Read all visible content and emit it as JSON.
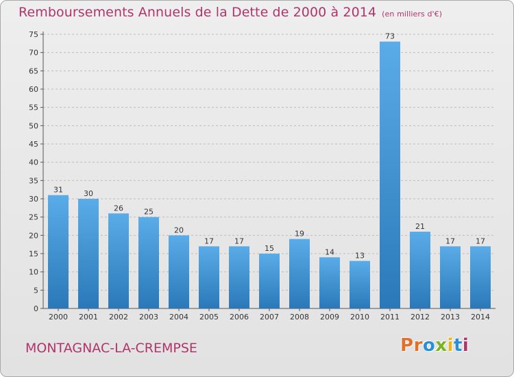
{
  "header": {
    "title": "Remboursements Annuels de la Dette de 2000 à 2014",
    "unit": "(en milliers d'€)"
  },
  "footer": {
    "commune": "MONTAGNAC-LA-CREMPSE",
    "logo": {
      "text": "Proxiti",
      "letters": [
        {
          "char": "P",
          "color": "#e0702a"
        },
        {
          "char": "r",
          "color": "#e0702a"
        },
        {
          "char": "o",
          "color": "#2a8fd6"
        },
        {
          "char": "x",
          "color": "#7ab51d"
        },
        {
          "char": "i",
          "color": "#e8b51a"
        },
        {
          "char": "t",
          "color": "#2a8fd6"
        },
        {
          "char": "i",
          "color": "#b0346a"
        }
      ]
    }
  },
  "colors": {
    "title": "#b0346a",
    "bar_top": "#5aace8",
    "bar_bottom": "#2a78b8",
    "grid": "#bdbdbd"
  },
  "chart_data": {
    "type": "bar",
    "title": "Remboursements Annuels de la Dette de 2000 à 2014",
    "subtitle": "(en milliers d'€)",
    "xlabel": "",
    "ylabel": "",
    "categories": [
      "2000",
      "2001",
      "2002",
      "2003",
      "2004",
      "2005",
      "2006",
      "2007",
      "2008",
      "2009",
      "2010",
      "2011",
      "2012",
      "2013",
      "2014"
    ],
    "values": [
      31,
      30,
      26,
      25,
      20,
      17,
      17,
      15,
      19,
      14,
      13,
      73,
      21,
      17,
      17
    ],
    "ylim": [
      0,
      75
    ],
    "yticks": [
      0,
      5,
      10,
      15,
      20,
      25,
      30,
      35,
      40,
      45,
      50,
      55,
      60,
      65,
      70,
      75
    ],
    "grid": true,
    "data_labels": true
  }
}
